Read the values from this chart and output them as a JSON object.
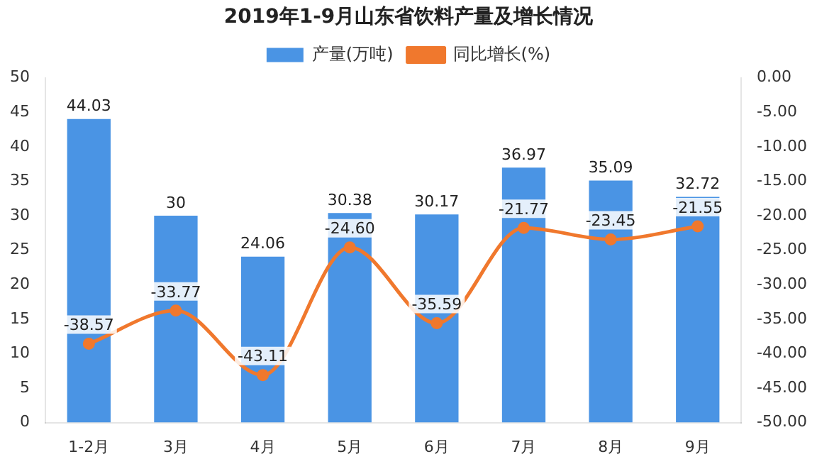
{
  "chart_data": {
    "type": "bar",
    "title": "2019年1-9月山东省饮料产量及增长情况",
    "categories": [
      "1-2月",
      "3月",
      "4月",
      "5月",
      "6月",
      "7月",
      "8月",
      "9月"
    ],
    "series": [
      {
        "name": "产量(万吨)",
        "color": "#4a94e4",
        "values": [
          44.03,
          30,
          24.06,
          30.38,
          30.17,
          36.97,
          35.09,
          32.72
        ],
        "value_labels": [
          "44.03",
          "30",
          "24.06",
          "30.38",
          "30.17",
          "36.97",
          "35.09",
          "32.72"
        ]
      },
      {
        "name": "同比增长(%)",
        "type": "line",
        "axis": "y2",
        "color": "#f0782d",
        "values": [
          -38.57,
          -33.77,
          -43.11,
          -24.6,
          -35.59,
          -21.77,
          -23.45,
          -21.55
        ],
        "value_labels": [
          "-38.57",
          "-33.77",
          "-43.11",
          "-24.60",
          "-35.59",
          "-21.77",
          "-23.45",
          "-21.55"
        ]
      }
    ],
    "ylim": [
      0,
      50
    ],
    "yticks": [
      0,
      5,
      10,
      15,
      20,
      25,
      30,
      35,
      40,
      45,
      50
    ],
    "y2lim": [
      -50,
      0
    ],
    "y2ticks": [
      {
        "value": 0,
        "label": "0.00"
      },
      {
        "value": -5,
        "label": "-5.00"
      },
      {
        "value": -10,
        "label": "-10.00"
      },
      {
        "value": -15,
        "label": "-15.00"
      },
      {
        "value": -20,
        "label": "-20.00"
      },
      {
        "value": -25,
        "label": "-25.00"
      },
      {
        "value": -30,
        "label": "-30.00"
      },
      {
        "value": -35,
        "label": "-35.00"
      },
      {
        "value": -40,
        "label": "-40.00"
      },
      {
        "value": -45,
        "label": "-45.00"
      },
      {
        "value": -50,
        "label": "-50.00"
      }
    ],
    "legend": "top",
    "grid": false,
    "marker": "circle"
  }
}
